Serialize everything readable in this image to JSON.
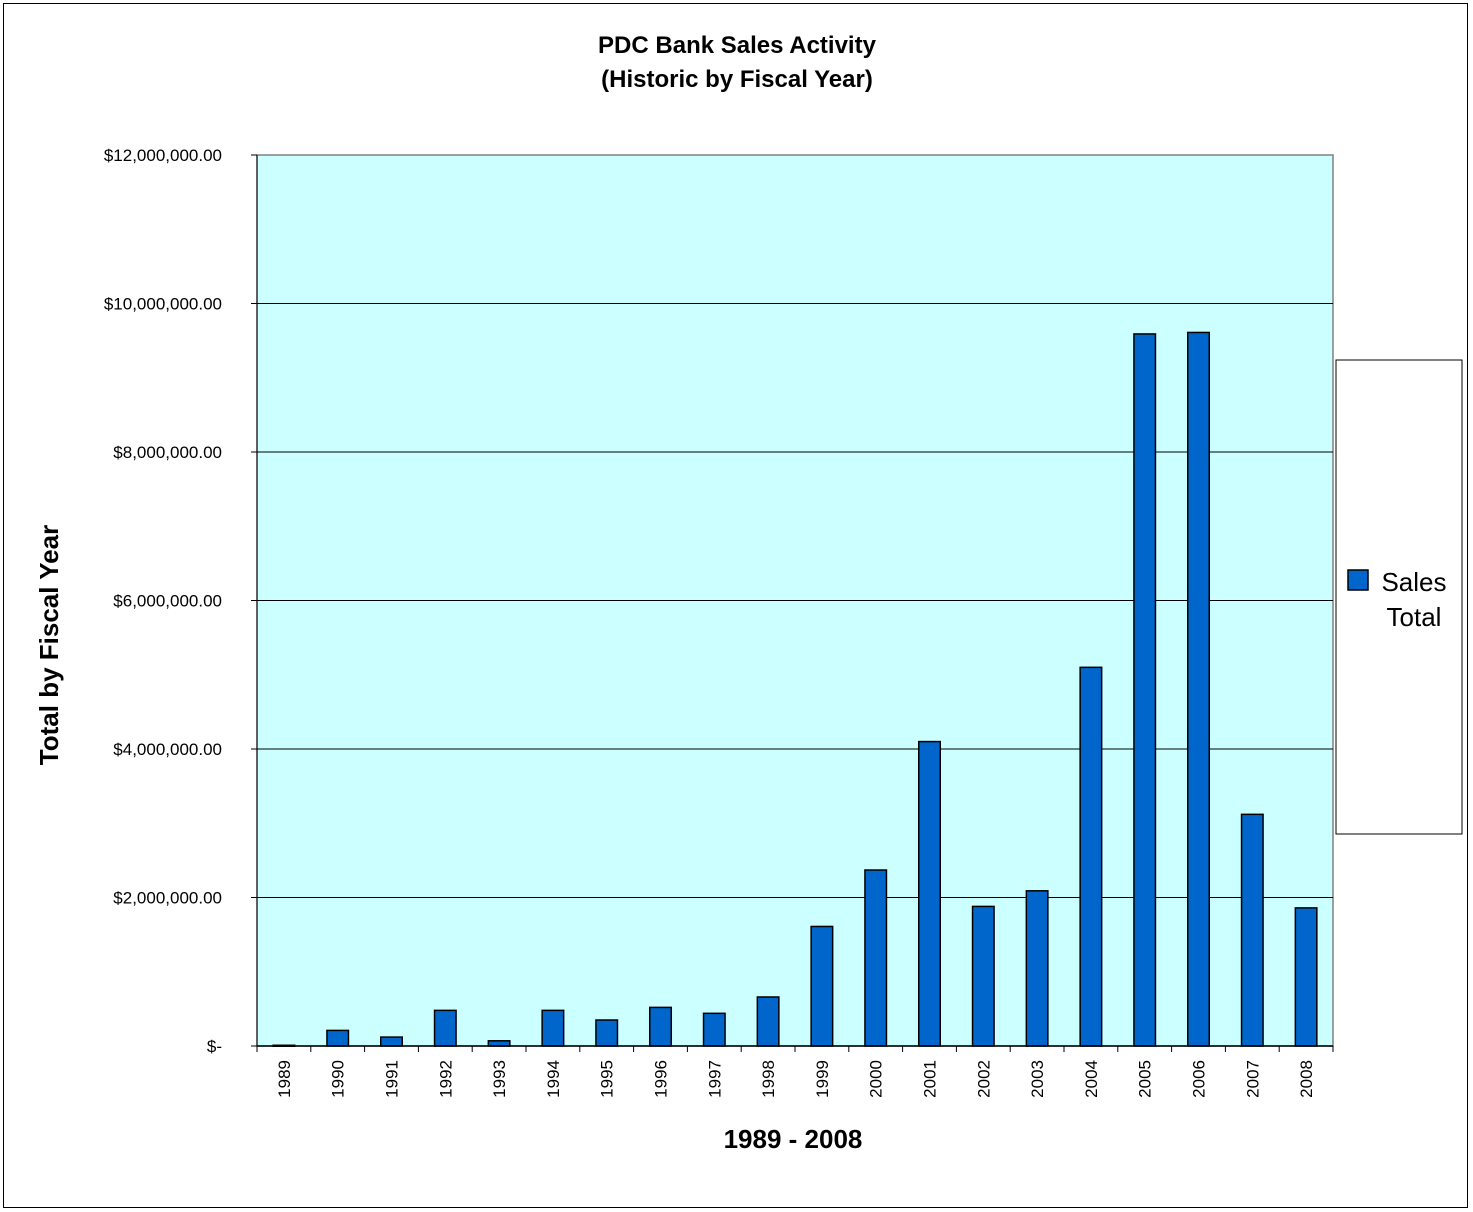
{
  "chart_data": {
    "type": "bar",
    "title": [
      "PDC Bank Sales Activity",
      "(Historic by Fiscal Year)"
    ],
    "xlabel": "1989 - 2008",
    "ylabel": "Total by Fiscal Year",
    "ylim": [
      0,
      12000000
    ],
    "yticks": [
      {
        "value": 0,
        "label": "$-"
      },
      {
        "value": 2000000,
        "label": "$2,000,000.00"
      },
      {
        "value": 4000000,
        "label": "$4,000,000.00"
      },
      {
        "value": 6000000,
        "label": "$6,000,000.00"
      },
      {
        "value": 8000000,
        "label": "$8,000,000.00"
      },
      {
        "value": 10000000,
        "label": "$10,000,000.00"
      },
      {
        "value": 12000000,
        "label": "$12,000,000.00"
      }
    ],
    "categories": [
      "1989",
      "1990",
      "1991",
      "1992",
      "1993",
      "1994",
      "1995",
      "1996",
      "1997",
      "1998",
      "1999",
      "2000",
      "2001",
      "2002",
      "2003",
      "2004",
      "2005",
      "2006",
      "2007",
      "2008"
    ],
    "series": [
      {
        "name": "Sales Total",
        "legend_lines": [
          "Sales",
          "Total"
        ],
        "color": "#0066CC",
        "values": [
          10000,
          210000,
          120000,
          480000,
          70000,
          480000,
          350000,
          520000,
          440000,
          660000,
          1610000,
          2370000,
          4100000,
          1880000,
          2090000,
          5100000,
          9590000,
          9610000,
          3120000,
          1860000
        ]
      }
    ],
    "grid": true,
    "legend_position": "right",
    "plot_background": "#CCFFFF"
  }
}
